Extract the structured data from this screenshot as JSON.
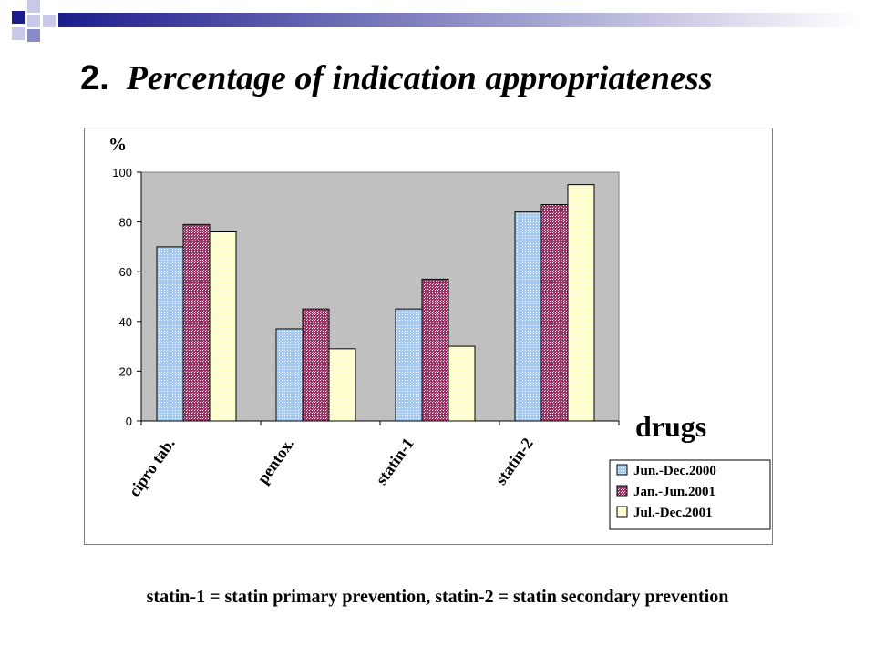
{
  "slide": {
    "title_number": "2.",
    "title_text": "Percentage of indication appropriateness",
    "footnote": "statin-1 = statin primary prevention, statin-2 = statin secondary prevention"
  },
  "chart_data": {
    "type": "bar",
    "title": "",
    "ylabel": "%",
    "xlabel": "drugs",
    "ylim": [
      0,
      100
    ],
    "yticks": [
      0,
      20,
      40,
      60,
      80,
      100
    ],
    "categories": [
      "cipro tab.",
      "pentox.",
      "statin-1",
      "statin-2"
    ],
    "series": [
      {
        "name": "Jun.-Dec.2000",
        "values": [
          70,
          37,
          45,
          84
        ],
        "color": "#a6caf0"
      },
      {
        "name": "Jan.-Jun.2001",
        "values": [
          79,
          45,
          57,
          87
        ],
        "color": "#993366"
      },
      {
        "name": "Jul.-Dec.2001",
        "values": [
          76,
          29,
          30,
          95
        ],
        "color": "#ffffcc"
      }
    ],
    "grid": false,
    "plot_background": "#c0c0c0",
    "legend_position": "bottom-right"
  }
}
